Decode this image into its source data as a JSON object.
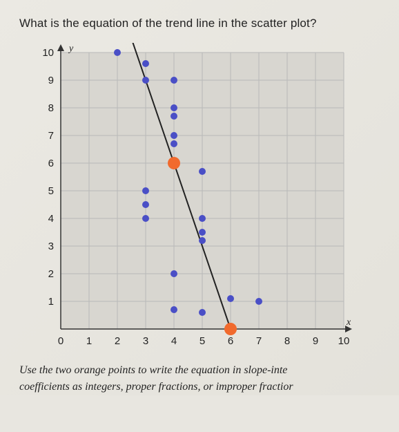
{
  "question": "What is the equation of the trend line in the scatter plot?",
  "instruction_line1": "Use the two orange points to write the equation in slope-inte",
  "instruction_line2": "coefficients as integers, proper fractions, or improper fractior",
  "chart": {
    "type": "scatter",
    "xlim": [
      0,
      10
    ],
    "ylim": [
      0,
      10
    ],
    "xtick_step": 1,
    "ytick_step": 1,
    "xlabel": "x",
    "ylabel": "y",
    "background_color": "#d8d6d0",
    "grid_color": "#b8b8b8",
    "axis_color": "#333333",
    "tick_fontsize": 15,
    "blue_points": {
      "color": "#4a4fc6",
      "radius": 5,
      "data": [
        [
          2,
          10
        ],
        [
          3,
          9.6
        ],
        [
          3,
          9
        ],
        [
          4,
          9
        ],
        [
          4,
          8
        ],
        [
          4,
          7.7
        ],
        [
          4,
          7
        ],
        [
          4,
          6.7
        ],
        [
          3,
          5
        ],
        [
          3,
          4.5
        ],
        [
          3,
          4
        ],
        [
          5,
          5.7
        ],
        [
          5,
          4
        ],
        [
          5,
          3.5
        ],
        [
          5,
          3.2
        ],
        [
          4,
          2
        ],
        [
          4,
          0.7
        ],
        [
          5,
          0.6
        ],
        [
          6,
          1.1
        ],
        [
          7,
          1
        ]
      ]
    },
    "orange_points": {
      "color": "#f16a2d",
      "radius": 9,
      "data": [
        [
          4,
          6
        ],
        [
          6,
          0
        ]
      ]
    },
    "trend_line": {
      "color": "#222222",
      "width": 2,
      "p1": [
        6,
        0
      ],
      "p2": [
        4,
        6
      ],
      "extend_to_y": 11
    },
    "y_ticks": [
      1,
      2,
      3,
      4,
      5,
      6,
      7,
      8,
      9,
      10
    ],
    "x_ticks": [
      0,
      1,
      2,
      3,
      4,
      5,
      6,
      7,
      8,
      9,
      10
    ]
  }
}
